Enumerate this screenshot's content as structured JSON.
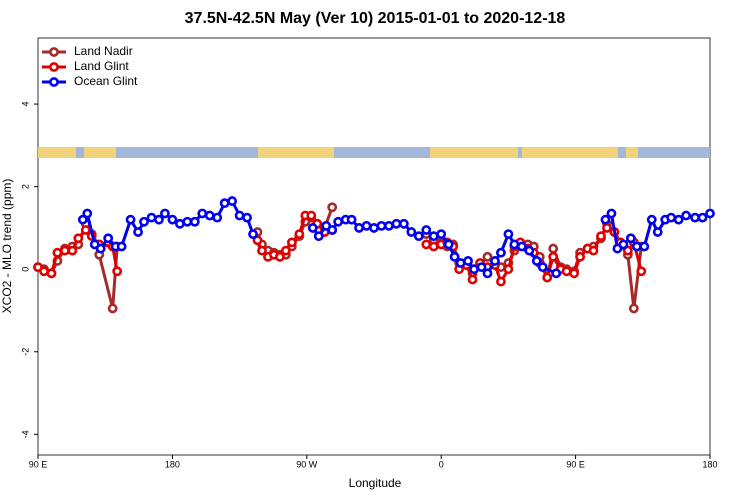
{
  "chart_data": {
    "type": "line",
    "title": "37.5N-42.5N May (Ver 10)   2015-01-01 to 2020-12-18",
    "xlabel": "Longitude",
    "ylabel": "XCO2 - MLO trend (ppm)",
    "xlim": [
      90,
      540
    ],
    "ylim": [
      -4.5,
      5.6
    ],
    "xticks": [
      {
        "value": 90,
        "label": "90 E"
      },
      180,
      {
        "value": 270,
        "label": "90 W"
      },
      {
        "value": 360,
        "label": "0"
      },
      {
        "value": 450,
        "label": "90 E"
      },
      {
        "value": 540,
        "label": "180"
      }
    ],
    "yticks": [
      -4,
      -2,
      0,
      2,
      4
    ],
    "legend": "top-left",
    "series": [
      {
        "name": "Land Nadir",
        "color": "#a52a2a",
        "x": [
          90,
          94,
          99,
          103,
          108,
          113,
          117,
          122,
          126,
          131,
          140,
          143,
          null,
          237,
          240,
          244,
          248,
          252,
          256,
          260,
          265,
          269,
          273,
          277,
          282,
          287,
          null,
          350,
          355,
          360,
          364,
          368,
          372,
          377,
          381,
          386,
          391,
          396,
          400,
          405,
          409,
          413,
          418,
          422,
          426,
          431,
          435,
          440,
          444,
          449,
          453,
          458,
          462,
          467,
          471,
          476,
          480,
          485,
          489,
          494
        ],
        "values": [
          0.05,
          0,
          -0.1,
          0.2,
          0.5,
          0.55,
          0.6,
          1.1,
          0.85,
          0.35,
          -0.95,
          0.55,
          null,
          0.9,
          0.6,
          0.45,
          0.4,
          0.35,
          0.35,
          0.55,
          0.8,
          1.15,
          1.25,
          1.1,
          1.0,
          1.5,
          null,
          0.85,
          0.7,
          0.65,
          0.55,
          0.6,
          0.15,
          0.1,
          -0.1,
          0.1,
          0.3,
          0.1,
          0.05,
          0.15,
          0.45,
          0.6,
          0.6,
          0.55,
          0.3,
          -0.2,
          0.5,
          0.05,
          0,
          -0.05,
          0.4,
          0.5,
          0.55,
          0.75,
          1.1,
          0.9,
          0.6,
          0.35,
          -0.95,
          0.55
        ]
      },
      {
        "name": "Land Glint",
        "color": "#e00000",
        "x": [
          90,
          94,
          99,
          103,
          108,
          113,
          117,
          122,
          126,
          131,
          140,
          143,
          null,
          237,
          240,
          244,
          248,
          252,
          256,
          260,
          265,
          269,
          273,
          277,
          282,
          287,
          null,
          350,
          355,
          360,
          364,
          368,
          372,
          377,
          381,
          386,
          391,
          396,
          400,
          405,
          409,
          413,
          418,
          422,
          426,
          431,
          435,
          440,
          444,
          449,
          453,
          458,
          462,
          467,
          471,
          476,
          480,
          485,
          489,
          494
        ],
        "values": [
          0.05,
          -0.05,
          -0.1,
          0.4,
          0.45,
          0.45,
          0.75,
          0.95,
          0.8,
          0.6,
          0.55,
          -0.05,
          null,
          0.7,
          0.45,
          0.3,
          0.35,
          0.3,
          0.45,
          0.65,
          0.85,
          1.3,
          1.3,
          1.1,
          0.9,
          0.95,
          null,
          0.6,
          0.55,
          0.6,
          0.65,
          0.55,
          0,
          0.1,
          -0.25,
          0.15,
          0.05,
          0.1,
          -0.3,
          0,
          0.55,
          0.65,
          0.5,
          0.4,
          0.15,
          -0.2,
          0.3,
          0,
          -0.05,
          -0.1,
          0.3,
          0.5,
          0.45,
          0.8,
          1.0,
          0.9,
          0.65,
          0.45,
          0.65,
          -0.05
        ]
      },
      {
        "name": "Ocean Glint",
        "color": "#0000ee",
        "x": [
          120,
          123,
          128,
          132,
          137,
          142,
          146,
          152,
          157,
          161,
          166,
          171,
          175,
          180,
          185,
          190,
          195,
          200,
          205,
          210,
          215,
          220,
          225,
          230,
          234,
          null,
          274,
          278,
          283,
          287,
          291,
          296,
          300,
          305,
          310,
          315,
          320,
          325,
          330,
          335,
          340,
          345,
          350,
          355,
          360,
          365,
          369,
          373,
          378,
          382,
          387,
          391,
          396,
          400,
          405,
          409,
          414,
          419,
          424,
          428,
          437,
          null,
          470,
          474,
          478,
          482,
          487,
          491,
          496,
          501,
          505,
          510,
          514,
          519,
          524,
          530,
          535,
          540
        ],
        "values": [
          1.2,
          1.35,
          0.6,
          0.5,
          0.75,
          0.55,
          0.55,
          1.2,
          0.9,
          1.15,
          1.25,
          1.2,
          1.35,
          1.2,
          1.1,
          1.15,
          1.15,
          1.35,
          1.3,
          1.25,
          1.6,
          1.65,
          1.3,
          1.25,
          0.85,
          null,
          1.0,
          0.8,
          1.05,
          0.95,
          1.15,
          1.2,
          1.2,
          1.0,
          1.05,
          1.0,
          1.05,
          1.05,
          1.1,
          1.1,
          0.9,
          0.8,
          0.95,
          0.8,
          0.85,
          0.6,
          0.3,
          0.15,
          0.2,
          0,
          0.05,
          -0.1,
          0.2,
          0.4,
          0.85,
          0.6,
          0.55,
          0.45,
          0.2,
          0.05,
          -0.1,
          null,
          1.2,
          1.35,
          0.5,
          0.6,
          0.75,
          0.55,
          0.55,
          1.2,
          0.9,
          1.2,
          1.25,
          1.2,
          1.3,
          1.25,
          1.25,
          1.35
        ]
      }
    ]
  }
}
